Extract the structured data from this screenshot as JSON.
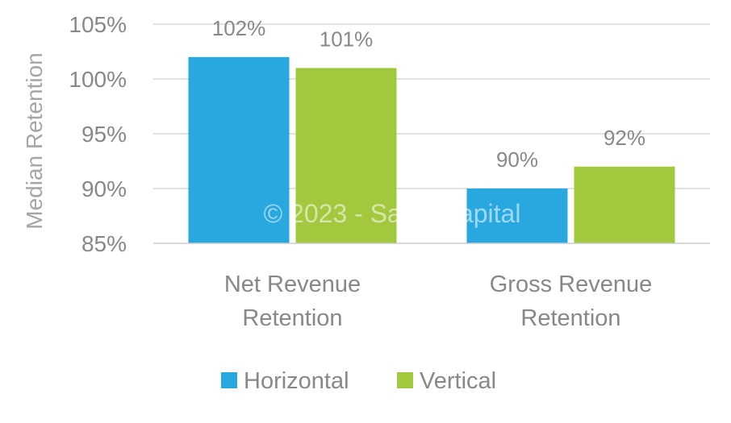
{
  "chart_data": {
    "type": "bar",
    "ylabel": "Median Retention",
    "ylim": [
      85,
      105
    ],
    "yticks": [
      85,
      90,
      95,
      100,
      105
    ],
    "ytick_labels": [
      "85%",
      "90%",
      "95%",
      "100%",
      "105%"
    ],
    "categories": [
      [
        "Net Revenue",
        "Retention"
      ],
      [
        "Gross Revenue",
        "Retention"
      ]
    ],
    "series": [
      {
        "name": "Horizontal",
        "values": [
          102,
          90
        ],
        "labels": [
          "102%",
          "90%"
        ],
        "color": "#29A8E0"
      },
      {
        "name": "Vertical",
        "values": [
          101,
          92
        ],
        "labels": [
          "101%",
          "92%"
        ],
        "color": "#A2C83E"
      }
    ],
    "grid": true,
    "legend_position": "bottom",
    "watermark": "© 2023 - SaaS Capital"
  }
}
